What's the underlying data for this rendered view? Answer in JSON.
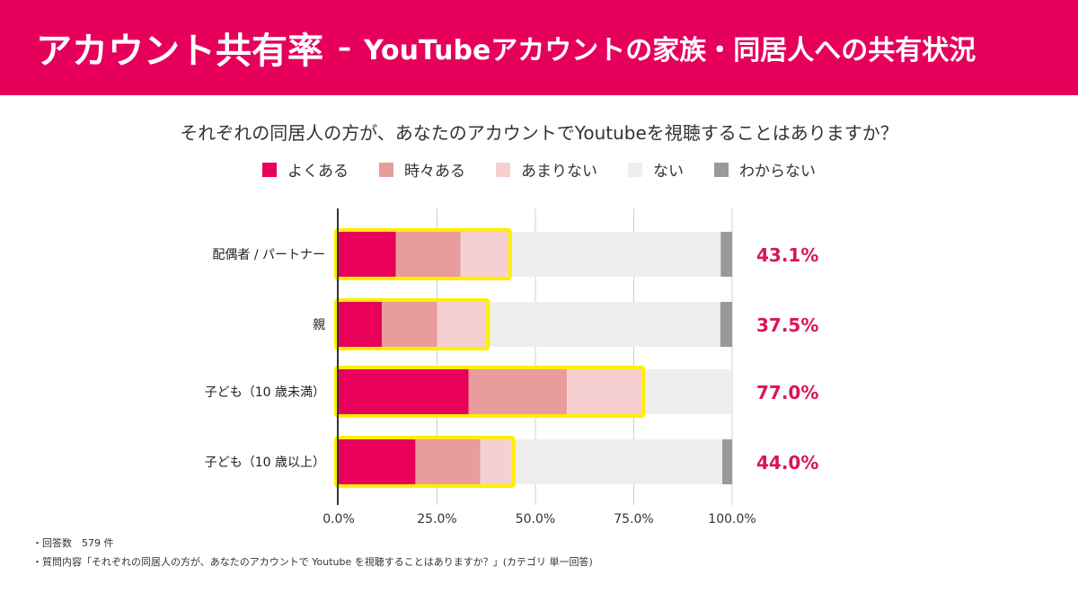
{
  "banner": {
    "title": "アカウント共有率",
    "separator": "–",
    "subtitle": "YouTubeアカウントの家族・同居人への共有状況"
  },
  "colors": {
    "brand": "#e6005c",
    "highlight": "#ffee00",
    "percent_label": "#d8145c"
  },
  "chart_data": {
    "type": "bar",
    "orientation": "horizontal",
    "stacked": true,
    "title": "それぞれの同居人の方が、あなたのアカウントでYoutubeを視聴することはありますか？",
    "categories": [
      "配偶者 / パートナー",
      "親",
      "子ども（10 歳未満）",
      "子ども（10 歳以上）"
    ],
    "series": [
      {
        "name": "よくある",
        "color": "#e8005a",
        "values": [
          14.5,
          11,
          33,
          19.5
        ]
      },
      {
        "name": "時々ある",
        "color": "#e89c9c",
        "values": [
          16.5,
          14,
          25,
          16.5
        ]
      },
      {
        "name": "あまりない",
        "color": "#f6d0d0",
        "values": [
          12.1,
          12.5,
          19,
          8
        ]
      },
      {
        "name": "ない",
        "color": "#eeeeee",
        "values": [
          54,
          59.5,
          23,
          53.5
        ]
      },
      {
        "name": "わからない",
        "color": "#999999",
        "values": [
          2.9,
          3,
          0,
          2.5
        ]
      }
    ],
    "highlight_totals": [
      "43.1%",
      "37.5%",
      "77.0%",
      "44.0%"
    ],
    "x_ticks": [
      "0.0%",
      "25.0%",
      "50.0%",
      "75.0%",
      "100.0%"
    ],
    "xlim": [
      0,
      100
    ],
    "grid": true,
    "legend_position": "top"
  },
  "footnotes": {
    "respondents": "・回答数　579 件",
    "question": "・質問内容「それぞれの同居人の方が、あなたのアカウントで Youtube を視聴することはありますか？」(カテゴリ 単一回答)"
  }
}
